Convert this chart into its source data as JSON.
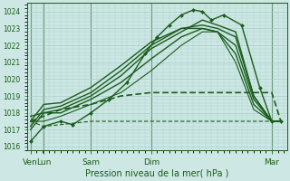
{
  "bg_color": "#cde8e4",
  "grid_color": "#aaccca",
  "line_color": "#1a5c1a",
  "xlabel_text": "Pression niveau de la mer( hPa )",
  "ylim": [
    1015.8,
    1024.5
  ],
  "yticks": [
    1016,
    1017,
    1018,
    1019,
    1020,
    1021,
    1022,
    1023,
    1024
  ],
  "xtick_labels": [
    "Ven",
    "Lun",
    "Sam",
    "Dim",
    "Mar"
  ],
  "xtick_positions": [
    0.0,
    0.22,
    1.0,
    2.0,
    4.0
  ],
  "xlim": [
    -0.05,
    4.25
  ],
  "x_vlines": [
    0.0,
    0.22,
    1.0,
    2.0,
    4.0
  ],
  "series": [
    {
      "x": [
        0.0,
        0.22,
        0.5,
        0.7,
        1.0,
        1.3,
        1.6,
        1.9,
        2.1,
        2.3,
        2.5,
        2.7,
        2.85,
        3.0,
        3.2,
        3.5,
        3.8,
        4.0,
        4.15
      ],
      "y": [
        1016.3,
        1017.2,
        1017.5,
        1017.3,
        1018.0,
        1018.8,
        1019.8,
        1021.5,
        1022.5,
        1023.2,
        1023.8,
        1024.1,
        1024.0,
        1023.5,
        1023.8,
        1023.2,
        1019.5,
        1017.5,
        1017.5
      ],
      "lw": 1.0,
      "ls": "-",
      "marker": "D",
      "ms": 2.0
    },
    {
      "x": [
        0.0,
        0.22,
        0.5,
        1.0,
        1.5,
        2.0,
        2.5,
        2.85,
        3.1,
        3.4,
        3.7,
        4.0,
        4.15
      ],
      "y": [
        1017.0,
        1018.0,
        1018.2,
        1019.0,
        1020.2,
        1021.8,
        1022.8,
        1023.5,
        1023.2,
        1022.8,
        1019.0,
        1017.5,
        1017.5
      ],
      "lw": 1.0,
      "ls": "-",
      "marker": "",
      "ms": 0
    },
    {
      "x": [
        0.0,
        0.22,
        0.5,
        1.0,
        1.5,
        2.0,
        2.5,
        2.85,
        3.1,
        3.4,
        3.7,
        4.0,
        4.15
      ],
      "y": [
        1017.2,
        1018.2,
        1018.4,
        1019.2,
        1020.5,
        1022.0,
        1023.0,
        1023.2,
        1023.0,
        1022.5,
        1019.0,
        1017.5,
        1017.5
      ],
      "lw": 1.0,
      "ls": "-",
      "marker": "",
      "ms": 0
    },
    {
      "x": [
        0.0,
        0.22,
        0.5,
        1.0,
        1.5,
        2.0,
        2.5,
        2.85,
        3.1,
        3.4,
        3.7,
        4.0,
        4.15
      ],
      "y": [
        1017.5,
        1018.5,
        1018.6,
        1019.5,
        1020.8,
        1022.2,
        1023.0,
        1023.0,
        1022.8,
        1022.0,
        1018.8,
        1017.5,
        1017.5
      ],
      "lw": 1.0,
      "ls": "-",
      "marker": "",
      "ms": 0
    },
    {
      "x": [
        0.0,
        0.22,
        0.5,
        1.0,
        1.5,
        2.0,
        2.5,
        2.85,
        3.1,
        3.4,
        3.7,
        4.0,
        4.15
      ],
      "y": [
        1017.8,
        1018.0,
        1018.0,
        1018.8,
        1019.8,
        1021.2,
        1022.5,
        1023.0,
        1022.8,
        1021.5,
        1018.5,
        1017.5,
        1017.5
      ],
      "lw": 1.0,
      "ls": "-",
      "marker": "",
      "ms": 0
    },
    {
      "x": [
        0.0,
        0.22,
        0.5,
        1.0,
        1.5,
        2.0,
        2.5,
        2.85,
        3.1,
        3.4,
        3.7,
        4.0,
        4.15
      ],
      "y": [
        1017.5,
        1017.5,
        1017.8,
        1018.5,
        1019.2,
        1020.5,
        1022.0,
        1022.8,
        1022.8,
        1021.0,
        1018.2,
        1017.5,
        1017.5
      ],
      "lw": 0.8,
      "ls": "-",
      "marker": "",
      "ms": 0
    },
    {
      "x": [
        0.0,
        0.22,
        0.5,
        1.0,
        1.5,
        2.0,
        2.5,
        3.0,
        3.5,
        4.0,
        4.15
      ],
      "y": [
        1017.5,
        1017.8,
        1018.2,
        1018.5,
        1019.0,
        1019.2,
        1019.2,
        1019.2,
        1019.2,
        1019.2,
        1017.5
      ],
      "lw": 1.2,
      "ls": "--",
      "marker": "",
      "ms": 0
    },
    {
      "x": [
        0.0,
        0.22,
        0.5,
        1.0,
        1.5,
        2.0,
        2.5,
        3.0,
        3.5,
        4.0,
        4.15
      ],
      "y": [
        1017.5,
        1017.2,
        1017.3,
        1017.5,
        1017.5,
        1017.5,
        1017.5,
        1017.5,
        1017.5,
        1017.5,
        1017.5
      ],
      "lw": 0.8,
      "ls": "--",
      "marker": "",
      "ms": 0
    }
  ]
}
